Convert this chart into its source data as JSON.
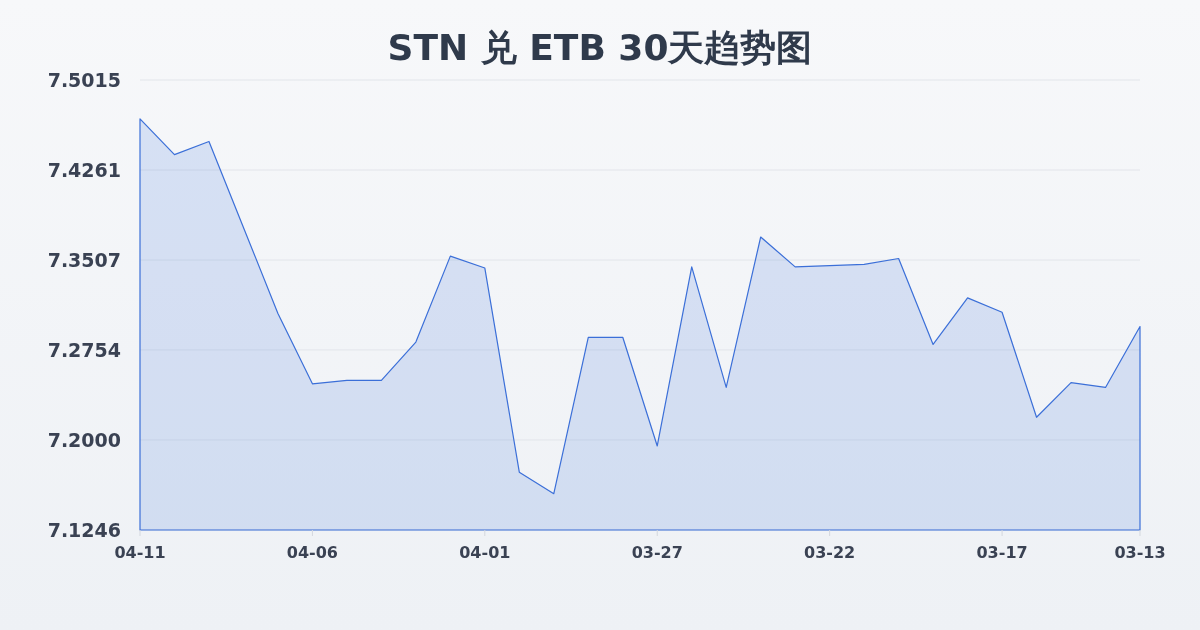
{
  "chart_data": {
    "type": "area",
    "title": "STN 兑 ETB 30天趋势图",
    "x": [
      "--04-11",
      "--04-10",
      "--04-09",
      "--04-08",
      "--04-07",
      "--04-06",
      "--04-05",
      "--04-04",
      "--04-03",
      "--04-02",
      "--04-01",
      "--03-31",
      "--03-30",
      "--03-29",
      "--03-28",
      "--03-27",
      "--03-26",
      "--03-25",
      "--03-24",
      "--03-23",
      "--03-22",
      "--03-21",
      "--03-20",
      "--03-19",
      "--03-18",
      "--03-17",
      "--03-16",
      "--03-15",
      "--03-14",
      "--03-13"
    ],
    "values": [
      7.469,
      7.439,
      7.45,
      7.378,
      7.306,
      7.247,
      7.25,
      7.25,
      7.282,
      7.354,
      7.344,
      7.173,
      7.155,
      7.286,
      7.286,
      7.195,
      7.345,
      7.244,
      7.37,
      7.345,
      7.346,
      7.347,
      7.352,
      7.28,
      7.319,
      7.307,
      7.219,
      7.248,
      7.244,
      7.295
    ],
    "color": "#3b6fd8",
    "xlim": [
      "--04-11",
      "--03-13"
    ],
    "xticks": [
      {
        "value": "--04-11",
        "label": "04-11"
      },
      {
        "value": "--04-06",
        "label": "04-06"
      },
      {
        "value": "--04-01",
        "label": "04-01"
      },
      {
        "value": "--03-27",
        "label": "03-27"
      },
      {
        "value": "--03-22",
        "label": "03-22"
      },
      {
        "value": "--03-17",
        "label": "03-17"
      },
      {
        "value": "--03-13",
        "label": "03-13"
      }
    ],
    "ylim": [
      7.1246,
      7.5015
    ],
    "yticks": [
      7.1246,
      {
        "value": 7.2,
        "label": "7.2000"
      },
      7.2754,
      7.3507,
      7.4261,
      7.5015
    ],
    "grid": "y"
  }
}
